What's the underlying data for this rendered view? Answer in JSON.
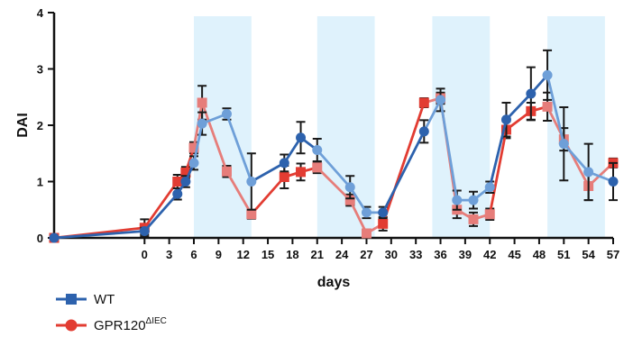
{
  "chart_data": {
    "type": "line",
    "xlabel": "days",
    "ylabel": "DAI",
    "xlim": [
      -11,
      57
    ],
    "ylim": [
      0,
      4
    ],
    "x_ticks": [
      0,
      3,
      6,
      9,
      12,
      15,
      18,
      21,
      24,
      27,
      30,
      33,
      36,
      39,
      42,
      45,
      48,
      51,
      54,
      57
    ],
    "y_ticks": [
      0,
      1,
      2,
      3,
      4
    ],
    "shaded_regions": [
      [
        6,
        13
      ],
      [
        21,
        28
      ],
      [
        35,
        42
      ],
      [
        49,
        56
      ]
    ],
    "grid": false,
    "legend_position": "bottom-left",
    "series": [
      {
        "name": "WT",
        "legend_name": "WT",
        "color": "#2d62ad",
        "light_color": "#6e9fd8",
        "marker": "circle",
        "points": [
          {
            "x": -11,
            "y": 0.0,
            "err": 0
          },
          {
            "x": 0,
            "y": 0.12,
            "err": 0.06
          },
          {
            "x": 4,
            "y": 0.78,
            "err": 0.1
          },
          {
            "x": 5,
            "y": 1.0,
            "err": 0.1
          },
          {
            "x": 6,
            "y": 1.33,
            "err": 0.12
          },
          {
            "x": 7,
            "y": 2.03,
            "err": 0.2
          },
          {
            "x": 10,
            "y": 2.2,
            "err": 0.1
          },
          {
            "x": 13,
            "y": 1.0,
            "err": 0.5
          },
          {
            "x": 17,
            "y": 1.33,
            "err": 0.15
          },
          {
            "x": 19,
            "y": 1.78,
            "err": 0.28
          },
          {
            "x": 21,
            "y": 1.56,
            "err": 0.2
          },
          {
            "x": 25,
            "y": 0.9,
            "err": 0.2
          },
          {
            "x": 27,
            "y": 0.45,
            "err": 0.1
          },
          {
            "x": 29,
            "y": 0.45,
            "err": 0.1
          },
          {
            "x": 34,
            "y": 1.89,
            "err": 0.2
          },
          {
            "x": 36,
            "y": 2.45,
            "err": 0.2
          },
          {
            "x": 38,
            "y": 0.67,
            "err": 0.17
          },
          {
            "x": 40,
            "y": 0.67,
            "err": 0.15
          },
          {
            "x": 42,
            "y": 0.9,
            "err": 0.1
          },
          {
            "x": 44,
            "y": 2.1,
            "err": 0.3
          },
          {
            "x": 47,
            "y": 2.56,
            "err": 0.47
          },
          {
            "x": 49,
            "y": 2.89,
            "err": 0.44
          },
          {
            "x": 51,
            "y": 1.67,
            "err": 0.65
          },
          {
            "x": 54,
            "y": 1.17,
            "err": 0.5
          },
          {
            "x": 57,
            "y": 1.0,
            "err": 0.33
          }
        ]
      },
      {
        "name": "GPR120",
        "legend_name": "GPR120",
        "legend_superscript": "ΔIEC",
        "color": "#e23c32",
        "light_color": "#e67d7a",
        "marker": "square",
        "points": [
          {
            "x": -11,
            "y": 0.0,
            "err": 0
          },
          {
            "x": 0,
            "y": 0.18,
            "err": 0.15
          },
          {
            "x": 4,
            "y": 1.0,
            "err": 0.12
          },
          {
            "x": 5,
            "y": 1.16,
            "err": 0.1
          },
          {
            "x": 6,
            "y": 1.6,
            "err": 0.1
          },
          {
            "x": 7,
            "y": 2.4,
            "err": 0.3
          },
          {
            "x": 10,
            "y": 1.18,
            "err": 0.1
          },
          {
            "x": 13,
            "y": 0.42,
            "err": 0.08
          },
          {
            "x": 17,
            "y": 1.08,
            "err": 0.2
          },
          {
            "x": 19,
            "y": 1.17,
            "err": 0.15
          },
          {
            "x": 21,
            "y": 1.25,
            "err": 0.1
          },
          {
            "x": 25,
            "y": 0.67,
            "err": 0.1
          },
          {
            "x": 27,
            "y": 0.08,
            "err": 0.05
          },
          {
            "x": 29,
            "y": 0.25,
            "err": 0.12
          },
          {
            "x": 34,
            "y": 2.4,
            "err": 0.08
          },
          {
            "x": 36,
            "y": 2.48,
            "err": 0.1
          },
          {
            "x": 38,
            "y": 0.5,
            "err": 0.15
          },
          {
            "x": 40,
            "y": 0.33,
            "err": 0.12
          },
          {
            "x": 42,
            "y": 0.42,
            "err": 0.1
          },
          {
            "x": 44,
            "y": 1.92,
            "err": 0.15
          },
          {
            "x": 47,
            "y": 2.25,
            "err": 0.15
          },
          {
            "x": 49,
            "y": 2.33,
            "err": 0.25
          },
          {
            "x": 51,
            "y": 1.75,
            "err": 0.2
          },
          {
            "x": 54,
            "y": 0.92,
            "err": 0.25
          },
          {
            "x": 57,
            "y": 1.33,
            "err": 0.08
          }
        ]
      }
    ]
  }
}
